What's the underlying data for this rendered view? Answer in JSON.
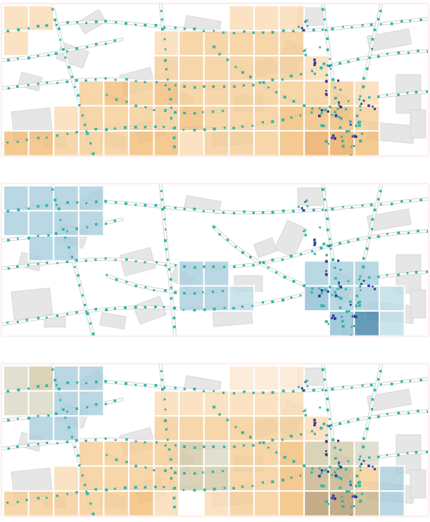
{
  "colors": {
    "basemap_background": "#ffffff",
    "building_fill": "#e6e6e6",
    "building_stroke": "#d2d2d2",
    "road_stroke": "#d9d9d9",
    "stop_dot_teal": "#2bb7a4",
    "stop_dot_navy": "#313a9c",
    "grid_cell_border": "#ffffff",
    "orange_ramp": [
      "#fbe8cf",
      "#f8dab1",
      "#f5cb92",
      "#f2bb73",
      "#eba658"
    ],
    "blue_ramp": [
      "#bcdbe6",
      "#a7cddc",
      "#8bbdd1",
      "#5f9fbf",
      "#3f7fa8"
    ],
    "mixed_ramp": [
      "#d9d6c3",
      "#cfc6a3",
      "#c4b184",
      "#b39568"
    ]
  },
  "map_panels": [
    {
      "id": "orange-density",
      "cells": [
        [
          0,
          0,
          1
        ],
        [
          0,
          1,
          1
        ],
        [
          0,
          9,
          1
        ],
        [
          0,
          10,
          1
        ],
        [
          0,
          11,
          1
        ],
        [
          1,
          0,
          1
        ],
        [
          1,
          6,
          1
        ],
        [
          1,
          7,
          2
        ],
        [
          1,
          8,
          2
        ],
        [
          1,
          9,
          2
        ],
        [
          1,
          10,
          2
        ],
        [
          1,
          11,
          2
        ],
        [
          2,
          6,
          2
        ],
        [
          2,
          7,
          2
        ],
        [
          2,
          8,
          2
        ],
        [
          2,
          9,
          2
        ],
        [
          2,
          10,
          2
        ],
        [
          2,
          11,
          2
        ],
        [
          2,
          12,
          1
        ],
        [
          3,
          3,
          2
        ],
        [
          3,
          4,
          3
        ],
        [
          3,
          5,
          2
        ],
        [
          3,
          6,
          3
        ],
        [
          3,
          7,
          2
        ],
        [
          3,
          8,
          2
        ],
        [
          3,
          9,
          2
        ],
        [
          3,
          10,
          2
        ],
        [
          3,
          11,
          2
        ],
        [
          3,
          12,
          2
        ],
        [
          3,
          13,
          2
        ],
        [
          3,
          14,
          1
        ],
        [
          4,
          2,
          1
        ],
        [
          4,
          3,
          2
        ],
        [
          4,
          4,
          2
        ],
        [
          4,
          5,
          2
        ],
        [
          4,
          6,
          2
        ],
        [
          4,
          7,
          3
        ],
        [
          4,
          8,
          2
        ],
        [
          4,
          9,
          2
        ],
        [
          4,
          10,
          2
        ],
        [
          4,
          11,
          3
        ],
        [
          4,
          12,
          3
        ],
        [
          4,
          13,
          3
        ],
        [
          4,
          14,
          2
        ],
        [
          5,
          0,
          3
        ],
        [
          5,
          1,
          3
        ],
        [
          5,
          2,
          2
        ],
        [
          5,
          3,
          2
        ],
        [
          5,
          4,
          2
        ],
        [
          5,
          5,
          3
        ],
        [
          5,
          6,
          3
        ],
        [
          5,
          7,
          1
        ],
        [
          5,
          8,
          2
        ],
        [
          5,
          9,
          2
        ],
        [
          5,
          10,
          2
        ],
        [
          5,
          11,
          3
        ],
        [
          5,
          12,
          4
        ],
        [
          5,
          13,
          4
        ],
        [
          5,
          14,
          3
        ]
      ]
    },
    {
      "id": "blue-density",
      "cells": [
        [
          0,
          0,
          1
        ],
        [
          0,
          1,
          1
        ],
        [
          0,
          2,
          1
        ],
        [
          0,
          3,
          1
        ],
        [
          1,
          0,
          1
        ],
        [
          1,
          1,
          1
        ],
        [
          1,
          2,
          1
        ],
        [
          1,
          3,
          1
        ],
        [
          2,
          1,
          1
        ],
        [
          2,
          2,
          1
        ],
        [
          3,
          7,
          1
        ],
        [
          3,
          8,
          1
        ],
        [
          3,
          12,
          1
        ],
        [
          3,
          13,
          1
        ],
        [
          3,
          14,
          1
        ],
        [
          4,
          7,
          1
        ],
        [
          4,
          8,
          1
        ],
        [
          4,
          9,
          0
        ],
        [
          4,
          12,
          2
        ],
        [
          4,
          13,
          1
        ],
        [
          4,
          14,
          1
        ],
        [
          4,
          15,
          0
        ],
        [
          5,
          13,
          2
        ],
        [
          5,
          14,
          4
        ],
        [
          5,
          15,
          0
        ]
      ]
    },
    {
      "id": "combined",
      "cells": [
        [
          0,
          0,
          "m0"
        ],
        [
          0,
          1,
          "m1"
        ],
        [
          0,
          2,
          "b1"
        ],
        [
          0,
          3,
          "b1"
        ],
        [
          0,
          9,
          "o0"
        ],
        [
          0,
          10,
          "o0"
        ],
        [
          0,
          11,
          "o0"
        ],
        [
          1,
          0,
          "m0"
        ],
        [
          1,
          1,
          "m0"
        ],
        [
          1,
          2,
          "b1"
        ],
        [
          1,
          3,
          "b1"
        ],
        [
          1,
          6,
          "o1"
        ],
        [
          1,
          7,
          "o1"
        ],
        [
          1,
          8,
          "o1"
        ],
        [
          1,
          9,
          "o1"
        ],
        [
          1,
          10,
          "o1"
        ],
        [
          1,
          11,
          "o1"
        ],
        [
          2,
          1,
          "b1"
        ],
        [
          2,
          2,
          "b1"
        ],
        [
          2,
          6,
          "o2"
        ],
        [
          2,
          7,
          "o2"
        ],
        [
          2,
          8,
          "o2"
        ],
        [
          2,
          9,
          "o2"
        ],
        [
          2,
          10,
          "o2"
        ],
        [
          2,
          11,
          "o2"
        ],
        [
          2,
          12,
          "o1"
        ],
        [
          3,
          3,
          "o2"
        ],
        [
          3,
          4,
          "o2"
        ],
        [
          3,
          5,
          "o2"
        ],
        [
          3,
          6,
          "o2"
        ],
        [
          3,
          7,
          "m1"
        ],
        [
          3,
          8,
          "m0"
        ],
        [
          3,
          9,
          "o2"
        ],
        [
          3,
          10,
          "o2"
        ],
        [
          3,
          11,
          "o3"
        ],
        [
          3,
          12,
          "m1"
        ],
        [
          3,
          13,
          "m1"
        ],
        [
          3,
          14,
          "m0"
        ],
        [
          4,
          2,
          "o1"
        ],
        [
          4,
          3,
          "o2"
        ],
        [
          4,
          4,
          "o2"
        ],
        [
          4,
          5,
          "o2"
        ],
        [
          4,
          6,
          "o2"
        ],
        [
          4,
          7,
          "m1"
        ],
        [
          4,
          8,
          "m1"
        ],
        [
          4,
          9,
          "o2"
        ],
        [
          4,
          10,
          "o2"
        ],
        [
          4,
          11,
          "o3"
        ],
        [
          4,
          12,
          "m2"
        ],
        [
          4,
          13,
          "m2"
        ],
        [
          4,
          14,
          "o2"
        ],
        [
          4,
          15,
          "b1"
        ],
        [
          5,
          0,
          "o2"
        ],
        [
          5,
          1,
          "o2"
        ],
        [
          5,
          2,
          "o2"
        ],
        [
          5,
          3,
          "o2"
        ],
        [
          5,
          4,
          "o2"
        ],
        [
          5,
          5,
          "o3"
        ],
        [
          5,
          6,
          "o1"
        ],
        [
          5,
          8,
          "o1"
        ],
        [
          5,
          9,
          "o2"
        ],
        [
          5,
          10,
          "o2"
        ],
        [
          5,
          11,
          "o3"
        ],
        [
          5,
          12,
          "m3"
        ],
        [
          5,
          13,
          "m3"
        ],
        [
          5,
          14,
          "m2"
        ],
        [
          5,
          15,
          "b1"
        ]
      ]
    }
  ]
}
